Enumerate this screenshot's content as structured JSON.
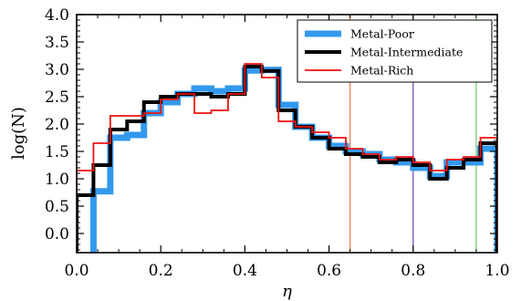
{
  "chart_data": {
    "type": "line",
    "style": "step histogram",
    "xlabel": "η",
    "ylabel": "log(N)",
    "xlim": [
      0.0,
      1.0
    ],
    "ylim": [
      -0.35,
      4.0
    ],
    "xticks": [
      0.0,
      0.2,
      0.4,
      0.6,
      0.8,
      1.0
    ],
    "xtick_labels": [
      "0.0",
      "0.2",
      "0.4",
      "0.6",
      "0.8",
      "1.0"
    ],
    "yticks": [
      0.0,
      0.5,
      1.0,
      1.5,
      2.0,
      2.5,
      3.0,
      3.5,
      4.0
    ],
    "ytick_labels": [
      "0.0",
      "0.5",
      "1.0",
      "1.5",
      "2.0",
      "2.5",
      "3.0",
      "3.5",
      "4.0"
    ],
    "grid": false,
    "legend_position": "top-right",
    "bin_edges": [
      0.0,
      0.04,
      0.08,
      0.12,
      0.16,
      0.2,
      0.24,
      0.28,
      0.32,
      0.36,
      0.4,
      0.44,
      0.48,
      0.52,
      0.56,
      0.6,
      0.64,
      0.68,
      0.72,
      0.76,
      0.8,
      0.84,
      0.88,
      0.92,
      0.96,
      1.0
    ],
    "series": [
      {
        "name": "Metal-Poor",
        "color": "#3399ee",
        "values": [
          -0.45,
          0.77,
          1.75,
          1.8,
          2.2,
          2.4,
          2.55,
          2.65,
          2.6,
          2.65,
          2.98,
          2.99,
          2.35,
          1.95,
          1.75,
          1.6,
          1.5,
          1.45,
          1.35,
          1.3,
          1.2,
          1.05,
          1.3,
          1.3,
          1.55
        ]
      },
      {
        "name": "Metal-Intermediate",
        "color": "#000000",
        "values": [
          0.7,
          1.25,
          1.9,
          2.05,
          2.4,
          2.5,
          2.55,
          2.55,
          2.5,
          2.55,
          3.05,
          2.97,
          2.25,
          1.95,
          1.75,
          1.55,
          1.45,
          1.4,
          1.3,
          1.35,
          1.25,
          1.0,
          1.2,
          1.35,
          1.65
        ]
      },
      {
        "name": "Metal-Rich",
        "color": "#ee1111",
        "values": [
          1.15,
          1.65,
          2.15,
          2.15,
          2.2,
          2.45,
          2.55,
          2.2,
          2.25,
          2.55,
          3.1,
          2.85,
          2.05,
          1.95,
          1.85,
          1.75,
          1.55,
          1.45,
          1.35,
          1.4,
          1.3,
          1.15,
          1.35,
          1.4,
          1.75
        ]
      }
    ],
    "vertical_lines": [
      {
        "x": 0.65,
        "color": "#ee7744"
      },
      {
        "x": 0.8,
        "color": "#6a3fb8"
      },
      {
        "x": 0.95,
        "color": "#66cc66"
      }
    ]
  }
}
